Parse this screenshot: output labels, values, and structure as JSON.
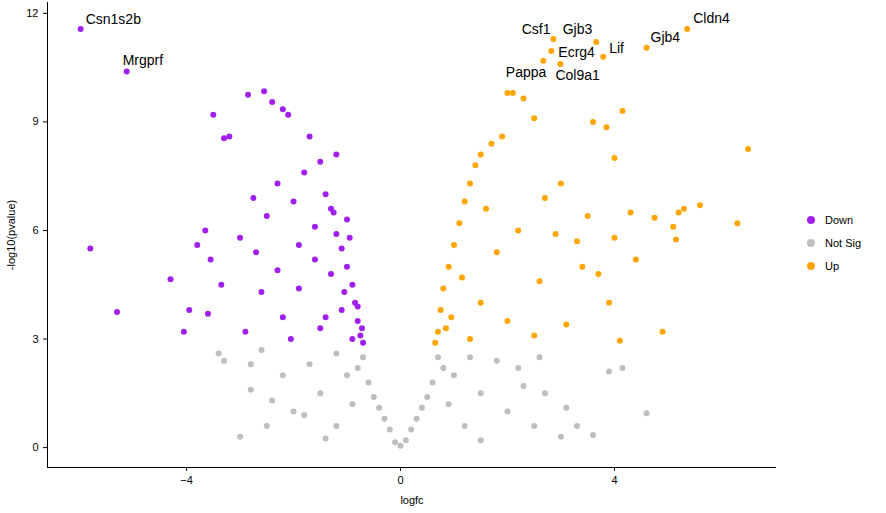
{
  "chart_data": {
    "type": "scatter",
    "x_label": "logfc",
    "y_label": "-log10(pvalue)",
    "xlim": [
      -6.6,
      7.03
    ],
    "ylim": [
      -0.55,
      12.3
    ],
    "xticks": [
      -4,
      0,
      4
    ],
    "yticks": [
      0,
      3,
      6,
      9,
      12
    ],
    "grid": false,
    "legend": "right",
    "series": [
      {
        "name": "Down",
        "color": "#A020F0",
        "x": [
          -5.98,
          -5.12,
          -5.8,
          -5.3,
          -4.3,
          -4.05,
          -3.95,
          -3.8,
          -3.65,
          -3.5,
          -3.55,
          -3.3,
          -3.2,
          -3.35,
          -3.0,
          -2.85,
          -2.55,
          -2.4,
          -2.2,
          -2.1,
          -2.3,
          -2.5,
          -2.7,
          -2.6,
          -2.0,
          -1.7,
          -1.5,
          -1.4,
          -1.3,
          -1.2,
          -1.1,
          -1.0,
          -0.9,
          -0.85,
          -0.8,
          -0.75,
          -0.7,
          -1.3,
          -1.6,
          -1.9,
          -2.2,
          -1.5,
          -1.1,
          -0.9,
          -3.6,
          -2.9,
          -1.2,
          -1.6,
          -1.9,
          -2.3,
          -1.0,
          -0.95,
          -1.8,
          -1.4,
          -1.05,
          -0.8,
          -0.72,
          -2.05,
          -2.75,
          -1.25
        ],
        "values": [
          11.57,
          10.39,
          5.5,
          3.75,
          4.65,
          3.2,
          3.8,
          5.6,
          6.0,
          9.2,
          5.2,
          8.55,
          8.6,
          4.5,
          5.8,
          9.75,
          9.85,
          9.55,
          9.35,
          9.2,
          7.3,
          6.4,
          5.4,
          4.3,
          6.8,
          8.6,
          7.9,
          7.0,
          6.6,
          5.9,
          5.5,
          5.0,
          4.5,
          4.0,
          3.5,
          3.1,
          2.9,
          4.8,
          5.2,
          4.4,
          3.6,
          3.3,
          3.8,
          3.0,
          3.7,
          3.2,
          8.1,
          6.1,
          5.6,
          4.9,
          6.3,
          5.8,
          7.6,
          3.6,
          4.3,
          3.9,
          3.3,
          3.0,
          6.9,
          6.5
        ]
      },
      {
        "name": "Not Sig",
        "color": "#BEBEBE",
        "x": [
          0.0,
          -0.2,
          0.2,
          -0.4,
          0.4,
          -0.6,
          0.6,
          -0.7,
          0.7,
          -1.0,
          1.0,
          -1.5,
          1.5,
          -2.0,
          2.0,
          -2.5,
          2.5,
          -3.0,
          3.0,
          -1.2,
          1.3,
          -2.2,
          2.2,
          -3.3,
          2.6,
          3.3,
          3.6,
          4.6,
          3.9,
          4.15,
          2.7,
          -2.8,
          -2.8,
          -1.8,
          -1.4,
          1.5,
          -0.1,
          0.1,
          -0.3,
          0.3,
          -0.5,
          0.5,
          -3.4,
          -2.6,
          -0.9,
          0.9,
          -1.2,
          1.2,
          -1.7,
          1.8,
          -0.8,
          0.8,
          2.3,
          -2.4,
          3.1
        ],
        "values": [
          0.05,
          0.5,
          0.5,
          1.1,
          1.1,
          1.8,
          1.8,
          2.5,
          2.5,
          2.0,
          2.0,
          1.5,
          1.5,
          1.0,
          1.0,
          0.6,
          0.6,
          0.3,
          0.3,
          2.6,
          2.5,
          2.0,
          2.2,
          2.4,
          2.5,
          0.6,
          0.35,
          0.95,
          2.1,
          2.2,
          1.5,
          1.6,
          2.3,
          0.9,
          0.25,
          0.2,
          0.15,
          0.2,
          0.8,
          0.8,
          1.4,
          1.4,
          2.6,
          2.7,
          1.2,
          1.2,
          0.6,
          0.6,
          2.3,
          2.4,
          2.2,
          2.2,
          1.7,
          1.3,
          1.1
        ]
      },
      {
        "name": "Up",
        "color": "#FFA500",
        "x": [
          5.36,
          4.6,
          2.86,
          3.66,
          2.82,
          3.79,
          2.67,
          2.99,
          6.5,
          6.3,
          5.6,
          5.3,
          5.2,
          5.1,
          4.9,
          4.75,
          5.15,
          4.15,
          3.85,
          3.6,
          4.0,
          4.3,
          4.0,
          4.1,
          3.5,
          3.4,
          3.0,
          2.7,
          2.9,
          2.5,
          2.3,
          2.1,
          2.0,
          1.9,
          1.7,
          1.5,
          1.4,
          1.3,
          1.2,
          1.1,
          1.0,
          0.9,
          0.8,
          0.75,
          0.7,
          0.65,
          1.5,
          2.0,
          2.5,
          3.1,
          3.7,
          2.2,
          1.8,
          2.6,
          3.3,
          4.4,
          3.9,
          1.3,
          0.95,
          1.6,
          1.15,
          0.85
        ],
        "values": [
          11.57,
          11.05,
          11.29,
          11.21,
          10.96,
          10.8,
          10.69,
          10.6,
          8.25,
          6.2,
          6.7,
          6.6,
          6.5,
          6.1,
          3.2,
          6.35,
          5.75,
          9.3,
          8.85,
          9.0,
          8.0,
          6.5,
          5.8,
          2.95,
          6.4,
          5.0,
          7.3,
          6.9,
          5.9,
          9.1,
          9.65,
          9.8,
          9.8,
          8.6,
          8.4,
          8.1,
          7.8,
          7.3,
          6.8,
          6.2,
          5.6,
          5.0,
          4.4,
          3.8,
          3.2,
          2.9,
          4.0,
          3.5,
          3.1,
          3.4,
          4.8,
          6.0,
          5.4,
          4.6,
          5.7,
          5.2,
          4.0,
          3.0,
          3.6,
          6.6,
          4.7,
          3.3
        ]
      }
    ],
    "annotations": [
      {
        "text": "Csn1s2b",
        "x": -5.98,
        "y": 11.57
      },
      {
        "text": "Mrgprf",
        "x": -5.12,
        "y": 10.39
      },
      {
        "text": "Csf1",
        "x": 2.86,
        "y": 11.29
      },
      {
        "text": "Gjb3",
        "x": 3.66,
        "y": 11.21
      },
      {
        "text": "Ecrg4",
        "x": 2.82,
        "y": 10.96
      },
      {
        "text": "Lif",
        "x": 3.79,
        "y": 10.8
      },
      {
        "text": "Gjb4",
        "x": 4.6,
        "y": 11.05
      },
      {
        "text": "Cldn4",
        "x": 5.36,
        "y": 11.57
      },
      {
        "text": "Pappa",
        "x": 2.67,
        "y": 10.69
      },
      {
        "text": "Col9a1",
        "x": 2.99,
        "y": 10.6
      }
    ]
  }
}
